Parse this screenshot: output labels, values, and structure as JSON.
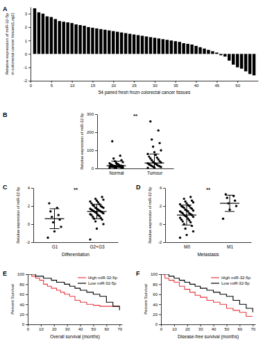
{
  "chart_data": [
    {
      "type": "bar",
      "panel_label": "A",
      "x": [
        1,
        2,
        3,
        4,
        5,
        6,
        7,
        8,
        9,
        10,
        11,
        12,
        13,
        14,
        15,
        16,
        17,
        18,
        19,
        20,
        21,
        22,
        23,
        24,
        25,
        26,
        27,
        28,
        29,
        30,
        31,
        32,
        33,
        34,
        35,
        36,
        37,
        38,
        39,
        40,
        41,
        42,
        43,
        44,
        45,
        46,
        47,
        48,
        49,
        50,
        51,
        52,
        53,
        54
      ],
      "values": [
        3.4,
        3.1,
        3.0,
        2.8,
        2.75,
        2.6,
        2.45,
        2.4,
        2.35,
        2.3,
        2.2,
        2.15,
        2.1,
        2.0,
        1.95,
        1.9,
        1.85,
        1.8,
        1.75,
        1.7,
        1.65,
        1.6,
        1.55,
        1.5,
        1.45,
        1.4,
        1.35,
        1.3,
        1.25,
        1.2,
        1.15,
        1.1,
        1.05,
        1.0,
        0.95,
        0.9,
        0.8,
        0.75,
        0.7,
        0.6,
        0.5,
        0.4,
        0.3,
        0.2,
        0.1,
        -0.1,
        -0.2,
        -0.5,
        -0.8,
        -1.0,
        -1.1,
        -1.3,
        -1.5,
        -1.6
      ],
      "color": "#000000",
      "xlabel": "54 paired fresh frozn colorectal cancer tissues",
      "ylabel": [
        "Relative expression of miR-32-5p",
        "in colorectal cancer tissues(Log2)"
      ],
      "xlim": [
        0,
        55
      ],
      "xticks": [
        0,
        5,
        10,
        15,
        20,
        25,
        30,
        35,
        40,
        45,
        50
      ],
      "ylim": [
        -2,
        3.5
      ],
      "yticks": [
        -2,
        -1,
        0,
        1,
        2,
        3
      ]
    },
    {
      "type": "strip",
      "panel_label": "B",
      "categories": [
        "Normal",
        "Tumour"
      ],
      "groups": [
        [
          2,
          3,
          5,
          5,
          6,
          8,
          8,
          9,
          10,
          10,
          11,
          12,
          12,
          13,
          14,
          15,
          15,
          16,
          18,
          20,
          22,
          25,
          28,
          30,
          35,
          40,
          45,
          55,
          70,
          150
        ],
        [
          3,
          5,
          8,
          10,
          12,
          14,
          15,
          18,
          20,
          22,
          25,
          28,
          30,
          33,
          36,
          40,
          45,
          50,
          55,
          60,
          65,
          75,
          80,
          90,
          100,
          120,
          140,
          160,
          210,
          260
        ]
      ],
      "mean": [
        15,
        30
      ],
      "sd": [
        25,
        50
      ],
      "color": "#000000",
      "ylabel": "Relative expression of miR-32-5p",
      "annotation": "**",
      "ylim": [
        0,
        300
      ],
      "yticks": [
        0,
        100,
        200,
        300
      ]
    },
    {
      "type": "strip",
      "panel_label": "C",
      "categories": [
        "G1",
        "G2+G3"
      ],
      "groups": [
        [
          -1.5,
          -0.8,
          -0.3,
          0.2,
          0.5,
          0.8,
          1.0,
          1.4,
          1.8,
          2.3
        ],
        [
          -1.7,
          -0.5,
          0,
          0.3,
          0.5,
          0.6,
          0.7,
          0.8,
          0.9,
          1.0,
          1.0,
          1.1,
          1.2,
          1.2,
          1.3,
          1.3,
          1.4,
          1.4,
          1.5,
          1.5,
          1.6,
          1.6,
          1.7,
          1.7,
          1.8,
          1.8,
          1.9,
          2.0,
          2.0,
          2.1,
          2.2,
          2.3,
          2.4,
          2.5,
          2.6,
          2.7,
          2.8,
          3.0
        ]
      ],
      "mean": [
        0.6,
        1.4
      ],
      "sd": [
        1.1,
        0.8
      ],
      "color": "#000000",
      "xlabel": "Differentiation",
      "ylabel": "Relative expression of miR-32-5p",
      "annotation": "**",
      "ylim": [
        -2,
        4
      ],
      "yticks": [
        -2,
        0,
        2,
        4
      ]
    },
    {
      "type": "strip",
      "panel_label": "D",
      "categories": [
        "M0",
        "M1"
      ],
      "groups": [
        [
          -1.5,
          -1.2,
          -0.8,
          -0.5,
          -0.2,
          0,
          0.2,
          0.3,
          0.4,
          0.5,
          0.6,
          0.7,
          0.8,
          0.8,
          0.9,
          1.0,
          1.0,
          1.1,
          1.2,
          1.2,
          1.3,
          1.4,
          1.4,
          1.5,
          1.5,
          1.6,
          1.7,
          1.8,
          1.8,
          1.9,
          2.0,
          2.0,
          2.1,
          2.2,
          2.3,
          2.4,
          2.5,
          2.6,
          2.8,
          3.0
        ],
        [
          0.6,
          1.6,
          2.0,
          2.3,
          2.6,
          2.9,
          3.1,
          3.3
        ]
      ],
      "mean": [
        1.0,
        2.3
      ],
      "sd": [
        1.1,
        0.9
      ],
      "color": "#000000",
      "xlabel": "Metastasis",
      "ylabel": "Relative expression of miR-32-5p",
      "annotation": "**",
      "ylim": [
        -2,
        4
      ],
      "yticks": [
        -2,
        0,
        2,
        4
      ]
    },
    {
      "type": "line",
      "panel_label": "E",
      "line_style": "step",
      "legend": "upper right",
      "xlabel": "Overall survival (months)",
      "ylabel": "Percent Survival",
      "xlim": [
        0,
        72
      ],
      "xticks": [
        0,
        10,
        20,
        30,
        40,
        50,
        60,
        70
      ],
      "ylim": [
        0,
        100
      ],
      "yticks": [
        0,
        20,
        40,
        60,
        80,
        100
      ],
      "series": [
        {
          "name": "High miR-32-5p",
          "color": "#e8393f",
          "x": [
            0,
            3,
            6,
            9,
            12,
            15,
            18,
            22,
            25,
            28,
            32,
            36,
            40,
            45,
            50,
            55,
            60,
            65,
            70
          ],
          "values": [
            100,
            96,
            92,
            88,
            80,
            76,
            72,
            68,
            64,
            60,
            56,
            48,
            44,
            40,
            38,
            36,
            36,
            36,
            36
          ]
        },
        {
          "name": "Low miR-32-5p",
          "color": "#000000",
          "x": [
            0,
            3,
            6,
            9,
            12,
            15,
            18,
            22,
            25,
            28,
            32,
            36,
            40,
            45,
            50,
            55,
            60,
            65,
            70
          ],
          "values": [
            100,
            100,
            96,
            96,
            92,
            92,
            88,
            84,
            84,
            80,
            76,
            72,
            68,
            64,
            60,
            56,
            44,
            36,
            28
          ]
        }
      ]
    },
    {
      "type": "line",
      "panel_label": "F",
      "line_style": "step",
      "legend": "upper right",
      "xlabel": "Disease-free survival (months)",
      "ylabel": "Percent Survival",
      "xlim": [
        0,
        72
      ],
      "xticks": [
        0,
        10,
        20,
        30,
        40,
        50,
        60,
        70
      ],
      "ylim": [
        0,
        100
      ],
      "yticks": [
        0,
        20,
        40,
        60,
        80,
        100
      ],
      "series": [
        {
          "name": "High miR-32-5p",
          "color": "#e8393f",
          "x": [
            0,
            3,
            6,
            10,
            14,
            18,
            22,
            26,
            30,
            35,
            40,
            45,
            50,
            55,
            60,
            65,
            70
          ],
          "values": [
            100,
            92,
            88,
            84,
            76,
            70,
            64,
            58,
            54,
            48,
            44,
            40,
            32,
            28,
            24,
            16,
            16
          ]
        },
        {
          "name": "Low miR-32-5p",
          "color": "#000000",
          "x": [
            0,
            3,
            6,
            10,
            14,
            18,
            22,
            26,
            30,
            35,
            40,
            45,
            50,
            55,
            60,
            65,
            70
          ],
          "values": [
            100,
            100,
            96,
            92,
            88,
            84,
            80,
            76,
            72,
            68,
            64,
            60,
            56,
            48,
            40,
            32,
            24
          ]
        }
      ]
    }
  ]
}
